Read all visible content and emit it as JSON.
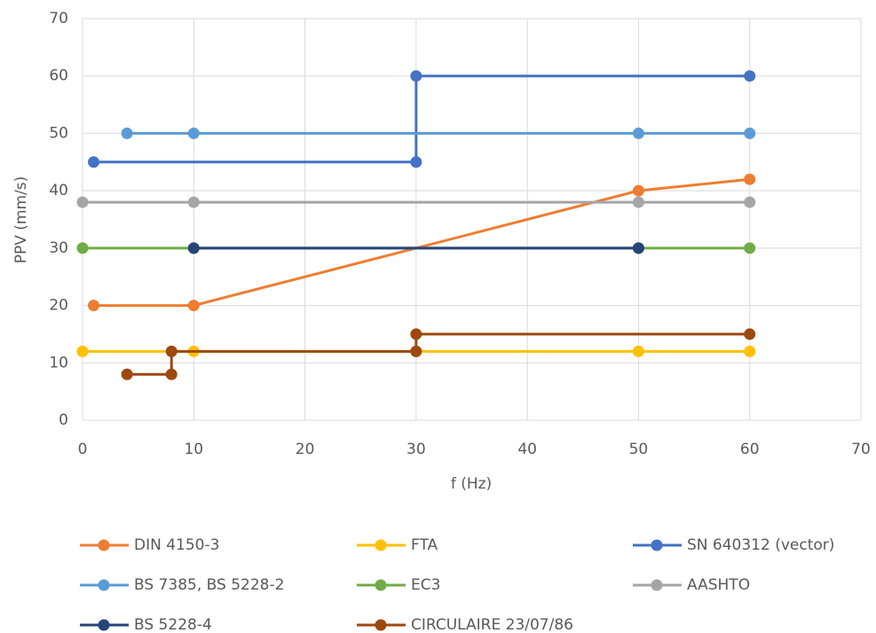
{
  "chart_data": {
    "type": "line",
    "x_label": "f (Hz)",
    "y_label": "PPV (mm/s)",
    "xlim": [
      0,
      70
    ],
    "xticks": [
      0,
      10,
      20,
      30,
      40,
      50,
      60,
      70
    ],
    "ylim": [
      0,
      70
    ],
    "yticks": [
      0,
      10,
      20,
      30,
      40,
      50,
      60,
      70
    ],
    "grid": true,
    "legend": "bottom",
    "series": [
      {
        "name": "DIN 4150-3",
        "color": "#ED7D31",
        "x": [
          1,
          10,
          50,
          60
        ],
        "values": [
          20,
          20,
          40,
          42
        ]
      },
      {
        "name": "FTA",
        "color": "#FFC000",
        "x": [
          0,
          10,
          30,
          50,
          60
        ],
        "values": [
          12,
          12,
          12,
          12,
          12
        ]
      },
      {
        "name": "SN 640312 (vector)",
        "color": "#4472C4",
        "x": [
          1,
          30,
          30,
          60
        ],
        "values": [
          45,
          45,
          60,
          60
        ]
      },
      {
        "name": "BS 7385, BS 5228-2",
        "color": "#5B9BD5",
        "x": [
          4,
          10,
          50,
          60
        ],
        "values": [
          50,
          50,
          50,
          50
        ]
      },
      {
        "name": "EC3",
        "color": "#70AD47",
        "x": [
          0,
          10,
          50,
          60
        ],
        "values": [
          30,
          30,
          30,
          30
        ]
      },
      {
        "name": "AASHTO",
        "color": "#A5A5A5",
        "x": [
          0,
          10,
          50,
          60
        ],
        "values": [
          38,
          38,
          38,
          38
        ]
      },
      {
        "name": "BS 5228-4",
        "color": "#264478",
        "x": [
          10,
          50
        ],
        "values": [
          30,
          30
        ]
      },
      {
        "name": "CIRCULAIRE 23/07/86",
        "color": "#9E480E",
        "x": [
          4,
          8,
          8,
          30,
          30,
          60
        ],
        "values": [
          8,
          8,
          12,
          12,
          15,
          15
        ]
      }
    ]
  }
}
